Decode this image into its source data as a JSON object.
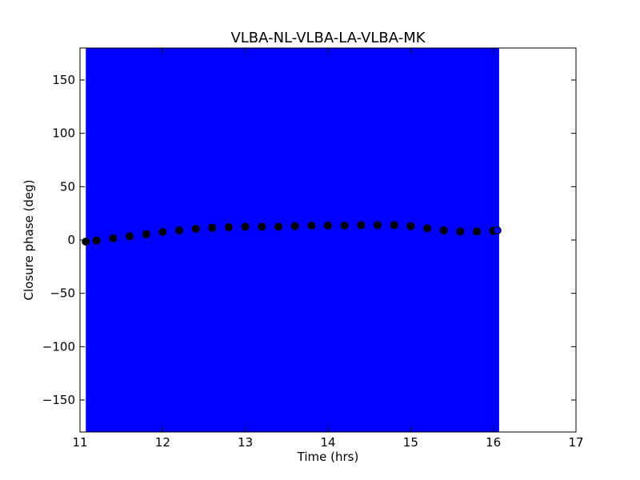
{
  "chart_data": {
    "type": "scatter",
    "title": "VLBA-NL-VLBA-LA-VLBA-MK",
    "xlabel": "Time (hrs)",
    "ylabel": "Closure phase (deg)",
    "xlim": [
      11,
      17
    ],
    "ylim": [
      -180,
      180
    ],
    "x_ticks": [
      11,
      12,
      13,
      14,
      15,
      16,
      17
    ],
    "y_ticks": [
      -150,
      -100,
      -50,
      0,
      50,
      100,
      150
    ],
    "x_tick_labels": [
      "11",
      "12",
      "13",
      "14",
      "15",
      "16",
      "17"
    ],
    "y_tick_labels": [
      "−150",
      "−100",
      "−50",
      "0",
      "50",
      "100",
      "150"
    ],
    "grid": false,
    "shaded_span": {
      "x": [
        11.07,
        16.07
      ],
      "color": "#0000ff"
    },
    "series": [
      {
        "color": "#000000",
        "edge_color": "#000000",
        "x": [
          11.07,
          11.2,
          11.4,
          11.6,
          11.8,
          12.0,
          12.2,
          12.4,
          12.6,
          12.8,
          13.0,
          13.2,
          13.4,
          13.6,
          13.8,
          14.0,
          14.2,
          14.4,
          14.6,
          14.8,
          15.0,
          15.2,
          15.4,
          15.6,
          15.8,
          16.0,
          16.05
        ],
        "y": [
          -1.5,
          -0.5,
          1.5,
          3.5,
          5.5,
          7.5,
          9.0,
          10.5,
          11.5,
          12.0,
          12.5,
          12.5,
          12.5,
          13.0,
          13.5,
          13.5,
          13.5,
          14.0,
          14.0,
          14.0,
          13.0,
          11.0,
          9.0,
          8.0,
          8.0,
          8.5,
          9.0
        ]
      }
    ],
    "last_point_color": "#0000ff"
  }
}
